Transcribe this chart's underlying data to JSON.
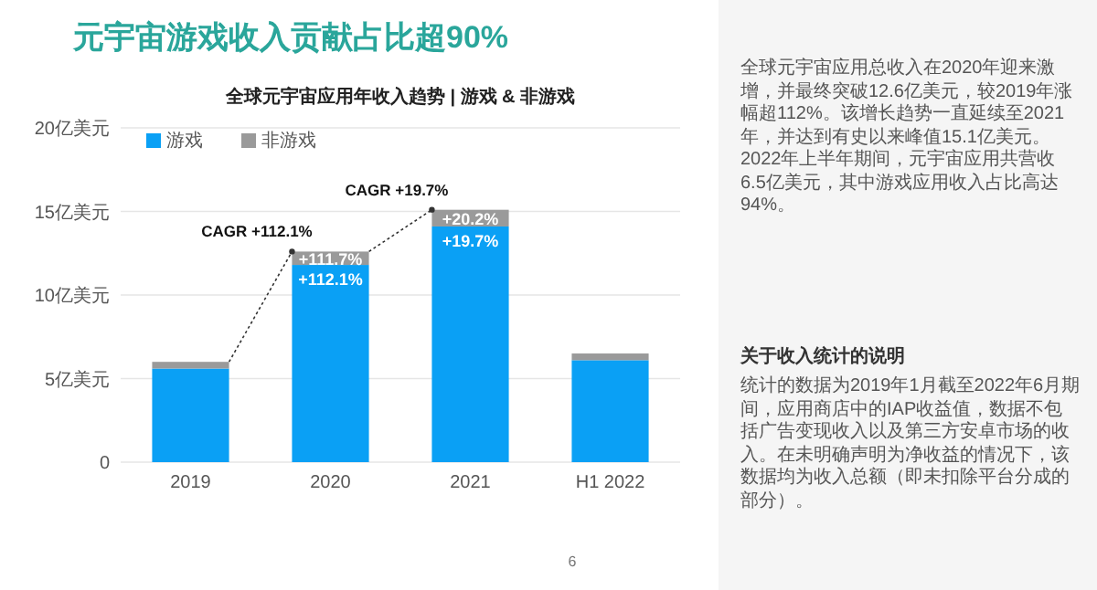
{
  "chart_data": [
    {
      "type": "bar",
      "title": "元宇宙游戏收入贡献占比超90%",
      "subtitle": "全球元宇宙应用年收入趋势 | 游戏 & 非游戏",
      "categories": [
        "2019",
        "2020",
        "2021",
        "H1 2022"
      ],
      "stacked": true,
      "legend": "top left",
      "grid": "y",
      "ylim": [
        0,
        20
      ],
      "yticks": [
        0,
        {
          "value": 5,
          "label": "5亿美元"
        },
        {
          "value": 10,
          "label": "10亿美元"
        },
        {
          "value": 15,
          "label": "15亿美元"
        },
        {
          "value": 20,
          "label": "20亿美元"
        }
      ],
      "series": [
        {
          "name": "游戏",
          "color": "#0aa0f5",
          "values": [
            5.6,
            11.8,
            14.1,
            6.1
          ]
        },
        {
          "name": "非游戏",
          "color": "#9a9a9a",
          "values": [
            0.4,
            0.8,
            1.0,
            0.4
          ]
        }
      ],
      "annotations": [
        {
          "text": "CAGR +112.1%",
          "x": "2020",
          "y": 12.6
        },
        {
          "text": "CAGR +19.7%",
          "x": "2021",
          "y": 15.1
        },
        {
          "text": "+112.1%",
          "x": "2020",
          "y": 11.8
        },
        {
          "text": "+111.7%",
          "x": "2020",
          "y": 12.6
        },
        {
          "text": "+19.7%",
          "x": "2021",
          "y": 14.1
        },
        {
          "text": "+20.2%",
          "x": "2021",
          "y": 15.1
        },
        "6"
      ]
    },
    {
      "type": "other",
      "annotations": [
        "全球元宇宙应用总收入在2020年迎来激增，并最终突破12.6亿美元，较2019年涨幅超112%。该增长趋势一直延续至2021年，并达到有史以来峰值15.1亿美元。2022年上半年期间，元宇宙应用共营收6.5亿美元，其中游戏应用收入占比高达94%。",
        "关于收入统计的说明",
        "统计的数据为2019年1月截至2022年6月期间，应用商店中的IAP收益值，数据不包括广告变现收入以及第三方安卓市场的收入。在未明确声明为净收益的情况下，该数据均为收入总额（即未扣除平台分成的部分）。"
      ]
    }
  ]
}
